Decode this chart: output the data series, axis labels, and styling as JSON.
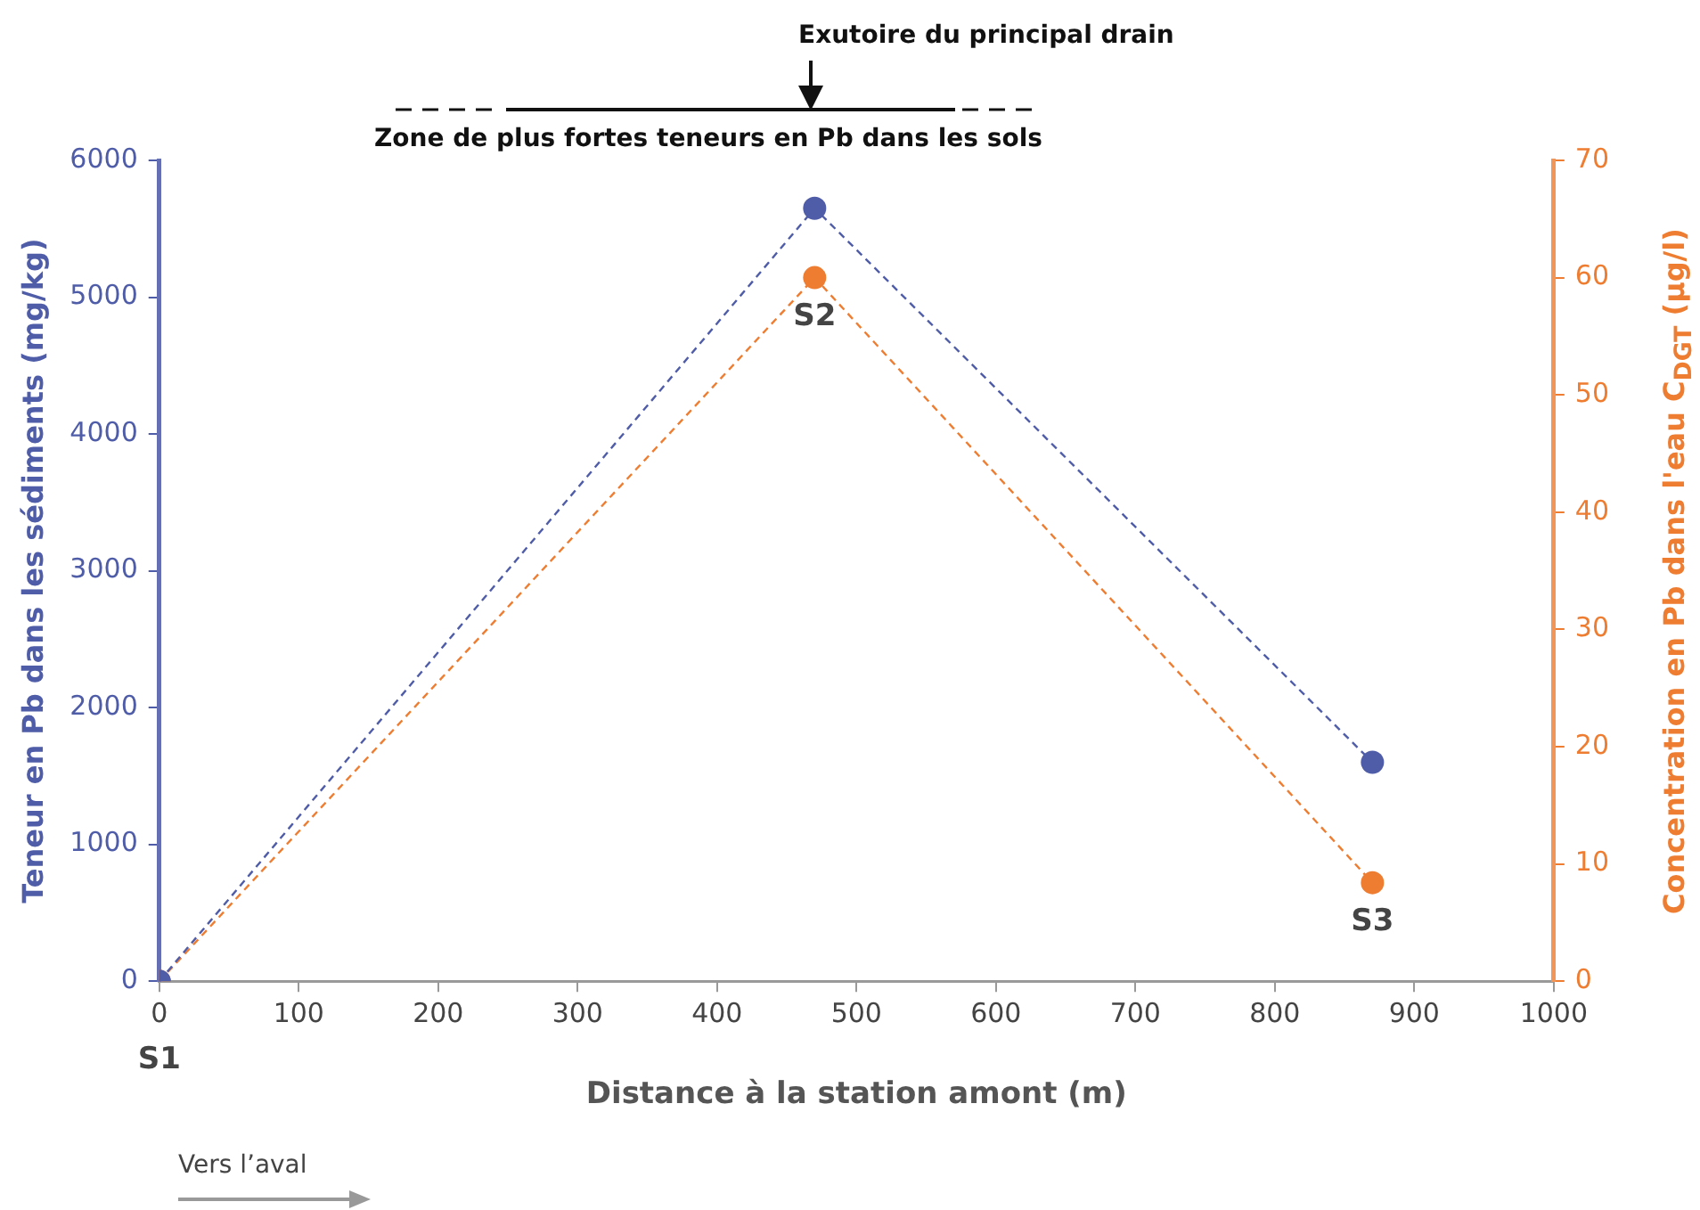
{
  "chart_data": {
    "type": "line",
    "xlabel": "Distance à la station amont (m)",
    "ylabel": "Teneur en Pb dans les sédiments (mg/kg)",
    "y2label": "Concentration en Pb dans l'eau C$_{DGT}$ (µg/l)",
    "xlim": [
      0,
      1000
    ],
    "xticks": [
      0,
      100,
      200,
      300,
      400,
      500,
      600,
      700,
      800,
      900,
      1000
    ],
    "ylim": [
      0,
      6000
    ],
    "yticks": [
      0,
      1000,
      2000,
      3000,
      4000,
      5000,
      6000
    ],
    "y2lim": [
      0,
      70
    ],
    "y2ticks": [
      0,
      10,
      20,
      30,
      40,
      50,
      60,
      70
    ],
    "x": [
      0,
      470,
      870
    ],
    "series": [
      {
        "color": "#4f5ca8",
        "values": [
          0,
          5650,
          1600
        ]
      },
      {
        "color": "#ee7d31",
        "values": [
          0,
          60,
          8.4
        ],
        "axis": "y2"
      }
    ],
    "marker": "circle",
    "line_style": "dashed",
    "grid": false,
    "legend": false,
    "annotations": [
      "Exutoire du principal drain",
      "Zone de plus fortes teneurs en Pb dans les sols",
      "S1",
      "S2",
      "S3",
      "Vers l’aval"
    ]
  }
}
